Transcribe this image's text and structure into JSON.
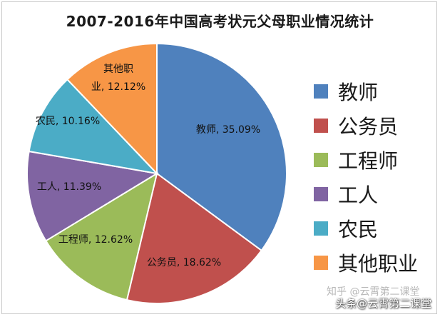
{
  "chart_data": {
    "type": "pie",
    "title": "2007-2016年中国高考状元父母职业情况统计",
    "slices": [
      {
        "name": "教师",
        "value": 35.09,
        "label": "教师, 35.09%",
        "color": "#4f81bd"
      },
      {
        "name": "公务员",
        "value": 18.62,
        "label": "公务员, 18.62%",
        "color": "#c0504d"
      },
      {
        "name": "工程师",
        "value": 12.62,
        "label": "工程师, 12.62%",
        "color": "#9bbb59"
      },
      {
        "name": "工人",
        "value": 11.39,
        "label": "工人, 11.39%",
        "color": "#8064a2"
      },
      {
        "name": "农民",
        "value": 10.16,
        "label": "农民, 10.16%",
        "color": "#4bacc6"
      },
      {
        "name": "其他职业",
        "value": 12.12,
        "label_lines": [
          "其他职",
          "业, 12.12%"
        ],
        "color": "#f79646"
      }
    ],
    "legend_position": "right"
  },
  "watermarks": {
    "zhihu": "知乎 @云霄第二课堂",
    "toutiao": "头条@云霄第二课堂"
  }
}
